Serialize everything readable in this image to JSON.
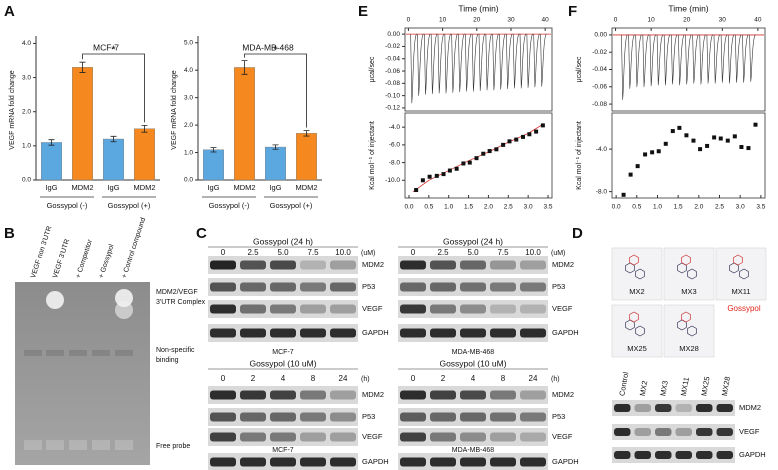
{
  "panel_labels": [
    "A",
    "B",
    "C",
    "D",
    "E",
    "F"
  ],
  "chart_data": [
    {
      "type": "bar",
      "title": "MCF-7",
      "ylabel": "VEGF mRNA fold change",
      "categories": [
        "IgG",
        "MDM2",
        "IgG",
        "MDM2"
      ],
      "values": [
        1.1,
        3.3,
        1.2,
        1.5
      ],
      "errors": [
        0.08,
        0.15,
        0.08,
        0.1
      ],
      "colors": [
        "#5ba7e0",
        "#f5891f",
        "#5ba7e0",
        "#f5891f"
      ],
      "group_labels": [
        "Gossypol (-)",
        "Gossypol (+)"
      ],
      "annotation": "*",
      "ylim": [
        0,
        4.1
      ],
      "yticks": [
        {
          "value": 0,
          "label": "0.0"
        },
        {
          "value": 1,
          "label": "1.0"
        },
        {
          "value": 2,
          "label": "2.0"
        },
        {
          "value": 3,
          "label": "3.0"
        },
        {
          "value": 4,
          "label": "4.0"
        }
      ]
    },
    {
      "type": "bar",
      "title": "MDA-MB-468",
      "ylabel": "VEGF mRNA fold change",
      "categories": [
        "IgG",
        "MDM2",
        "IgG",
        "MDM2"
      ],
      "values": [
        1.1,
        4.1,
        1.2,
        1.7
      ],
      "errors": [
        0.08,
        0.25,
        0.08,
        0.1
      ],
      "colors": [
        "#5ba7e0",
        "#f5891f",
        "#5ba7e0",
        "#f5891f"
      ],
      "group_labels": [
        "Gossypol (-)",
        "Gossypol (+)"
      ],
      "annotation": "*",
      "ylim": [
        0,
        5.1
      ],
      "yticks": [
        {
          "value": 0,
          "label": "0.0"
        },
        {
          "value": 1,
          "label": "1.0"
        },
        {
          "value": 2,
          "label": "2.0"
        },
        {
          "value": 3,
          "label": "3.0"
        },
        {
          "value": 4,
          "label": "4.0"
        },
        {
          "value": 5,
          "label": "5.0"
        }
      ]
    },
    {
      "type": "spike",
      "xlabel": "Time (min)",
      "ylabel": "μcal/sec",
      "xaxis": "top",
      "baseline": 0,
      "color": "#d9302c",
      "x": [
        1,
        3,
        5,
        7,
        9,
        11,
        13,
        15,
        17,
        19,
        21,
        23,
        25,
        27,
        29,
        31,
        33,
        35,
        37,
        39
      ],
      "values": [
        -0.112,
        -0.1,
        -0.098,
        -0.097,
        -0.096,
        -0.096,
        -0.095,
        -0.094,
        -0.093,
        -0.093,
        -0.092,
        -0.091,
        -0.091,
        -0.09,
        -0.089,
        -0.088,
        -0.088,
        -0.087,
        -0.086,
        -0.085
      ],
      "xlim": [
        -1,
        42
      ],
      "xticks": [
        0,
        10,
        20,
        30,
        40
      ],
      "ylim": [
        -0.125,
        0.01
      ],
      "yticks": [
        {
          "value": 0,
          "label": "0.00"
        },
        {
          "value": -0.02,
          "label": "-0.02"
        },
        {
          "value": -0.04,
          "label": "-0.04"
        },
        {
          "value": -0.06,
          "label": "-0.06"
        },
        {
          "value": -0.08,
          "label": "-0.08"
        },
        {
          "value": -0.1,
          "label": "-0.10"
        },
        {
          "value": -0.12,
          "label": "-0.12"
        }
      ]
    },
    {
      "type": "scatter",
      "ylabel": "Kcal mol⁻¹ of injectant",
      "color": "#d9302c",
      "x": [
        0.18,
        0.35,
        0.52,
        0.7,
        0.87,
        1.03,
        1.2,
        1.37,
        1.53,
        1.7,
        1.87,
        2.03,
        2.2,
        2.37,
        2.53,
        2.7,
        2.87,
        3.03,
        3.2,
        3.37
      ],
      "values": [
        -11.1,
        -10.0,
        -9.6,
        -9.5,
        -9.3,
        -8.9,
        -8.7,
        -8.1,
        -8.0,
        -7.5,
        -7.0,
        -6.7,
        -6.5,
        -6.0,
        -5.6,
        -5.4,
        -5.1,
        -4.8,
        -4.5,
        -3.8
      ],
      "fit": {
        "x": [
          0.1,
          0.5,
          1.0,
          1.5,
          2.0,
          2.5,
          3.0,
          3.4
        ],
        "values": [
          -11.3,
          -10.0,
          -8.9,
          -7.8,
          -6.8,
          -5.7,
          -4.7,
          -3.6
        ]
      },
      "xlim": [
        -0.1,
        3.6
      ],
      "xticks": [
        {
          "value": 0,
          "label": "0.0"
        },
        {
          "value": 0.5,
          "label": "0.5"
        },
        {
          "value": 1,
          "label": "1.0"
        },
        {
          "value": 1.5,
          "label": "1.5"
        },
        {
          "value": 2,
          "label": "2.0"
        },
        {
          "value": 2.5,
          "label": "2.5"
        },
        {
          "value": 3,
          "label": "3.0"
        },
        {
          "value": 3.5,
          "label": "3.5"
        }
      ],
      "ylim": [
        -12,
        -2.4
      ],
      "yticks": [
        {
          "value": -4,
          "label": "-4.0"
        },
        {
          "value": -6,
          "label": "-6.0"
        },
        {
          "value": -8,
          "label": "-8.0"
        },
        {
          "value": -10,
          "label": "-10.0"
        }
      ]
    },
    {
      "type": "spike",
      "xlabel": "Time (min)",
      "ylabel": "μcal/sec",
      "xaxis": "top",
      "baseline": 0,
      "color": "#d9302c",
      "x": [
        2,
        4,
        6,
        8,
        10,
        12,
        14,
        16,
        18,
        20,
        22,
        24,
        26,
        28,
        30,
        32,
        34,
        36,
        38
      ],
      "values": [
        -0.075,
        -0.062,
        -0.06,
        -0.06,
        -0.059,
        -0.058,
        -0.058,
        -0.057,
        -0.058,
        -0.057,
        -0.056,
        -0.057,
        -0.056,
        -0.056,
        -0.055,
        -0.056,
        -0.055,
        -0.055,
        -0.054
      ],
      "xlim": [
        -1,
        42
      ],
      "xticks": [
        0,
        10,
        20,
        30,
        40
      ],
      "ylim": [
        -0.088,
        0.008
      ],
      "yticks": [
        {
          "value": 0,
          "label": "0.00"
        },
        {
          "value": -0.02,
          "label": "-0.02"
        },
        {
          "value": -0.04,
          "label": "-0.04"
        },
        {
          "value": -0.06,
          "label": "-0.06"
        },
        {
          "value": -0.08,
          "label": "-0.08"
        }
      ]
    },
    {
      "type": "scatter",
      "ylabel": "Kcal mol⁻¹ of injectant",
      "x": [
        0.18,
        0.35,
        0.52,
        0.7,
        0.87,
        1.03,
        1.2,
        1.37,
        1.53,
        1.7,
        1.87,
        2.03,
        2.2,
        2.37,
        2.53,
        2.7,
        2.87,
        3.03,
        3.2,
        3.37
      ],
      "values": [
        -8.3,
        -6.4,
        -5.6,
        -4.5,
        -4.3,
        -4.2,
        -3.5,
        -2.3,
        -2.0,
        -2.7,
        -3.2,
        -4.0,
        -3.7,
        -2.9,
        -3.0,
        -3.2,
        -2.8,
        -3.8,
        -3.9,
        -1.7
      ],
      "xlim": [
        -0.1,
        3.6
      ],
      "xticks": [
        {
          "value": 0,
          "label": "0.0"
        },
        {
          "value": 0.5,
          "label": "0.5"
        },
        {
          "value": 1,
          "label": "1.0"
        },
        {
          "value": 1.5,
          "label": "1.5"
        },
        {
          "value": 2,
          "label": "2.0"
        },
        {
          "value": 2.5,
          "label": "2.5"
        },
        {
          "value": 3,
          "label": "3.0"
        },
        {
          "value": 3.5,
          "label": "3.5"
        }
      ],
      "ylim": [
        -8.6,
        -0.6
      ],
      "yticks": [
        {
          "value": -4,
          "label": "-4.0"
        },
        {
          "value": -8,
          "label": "-8.0"
        }
      ]
    }
  ],
  "gel": {
    "lanes": [
      "VEGF non 3'UTR",
      "VEGF 3'UTR",
      "+ Competitor",
      "+ Gossypol",
      "+ Control compound"
    ],
    "bands": [
      [
        "MDM2/VEGF",
        "3'UTR Complex"
      ],
      [
        "Non-specific",
        "binding"
      ],
      [
        "Free probe"
      ]
    ]
  },
  "blots": [
    {
      "treatment": "Gossypol (24 h)",
      "unit": "(uM)",
      "lanes": [
        "0",
        "2.5",
        "5.0",
        "7.5",
        "10.0"
      ],
      "rows": [
        "MDM2",
        "P53",
        "VEGF",
        "GAPDH"
      ],
      "cell_line": "MCF-7"
    },
    {
      "treatment": "Gossypol (24 h)",
      "unit": "(uM)",
      "lanes": [
        "0",
        "2.5",
        "5.0",
        "7.5",
        "10.0"
      ],
      "rows": [
        "MDM2",
        "P53",
        "VEGF",
        "GAPDH"
      ],
      "cell_line": "MDA-MB-468"
    },
    {
      "treatment": "Gossypol (10 uM)",
      "unit": "(h)",
      "lanes": [
        "0",
        "2",
        "4",
        "8",
        "24"
      ],
      "rows": [
        "MDM2",
        "P53",
        "VEGF",
        "GAPDH"
      ],
      "cell_line": "MCF-7"
    },
    {
      "treatment": "Gossypol (10 uM)",
      "unit": "(h)",
      "lanes": [
        "0",
        "2",
        "4",
        "8",
        "24"
      ],
      "rows": [
        "MDM2",
        "P53",
        "VEGF",
        "GAPDH"
      ],
      "cell_line": "MDA-MB-468"
    }
  ],
  "compounds": {
    "structures": [
      "MX2",
      "MX3",
      "MX11",
      "MX25",
      "MX28"
    ],
    "highlight": "Gossypol",
    "highlight_color": "#e0261d",
    "blot": {
      "lanes": [
        "Control",
        "MX2",
        "MX3",
        "MX11",
        "MX25",
        "MX28"
      ],
      "rows": [
        "MDM2",
        "VEGF",
        "GAPDH"
      ]
    }
  }
}
